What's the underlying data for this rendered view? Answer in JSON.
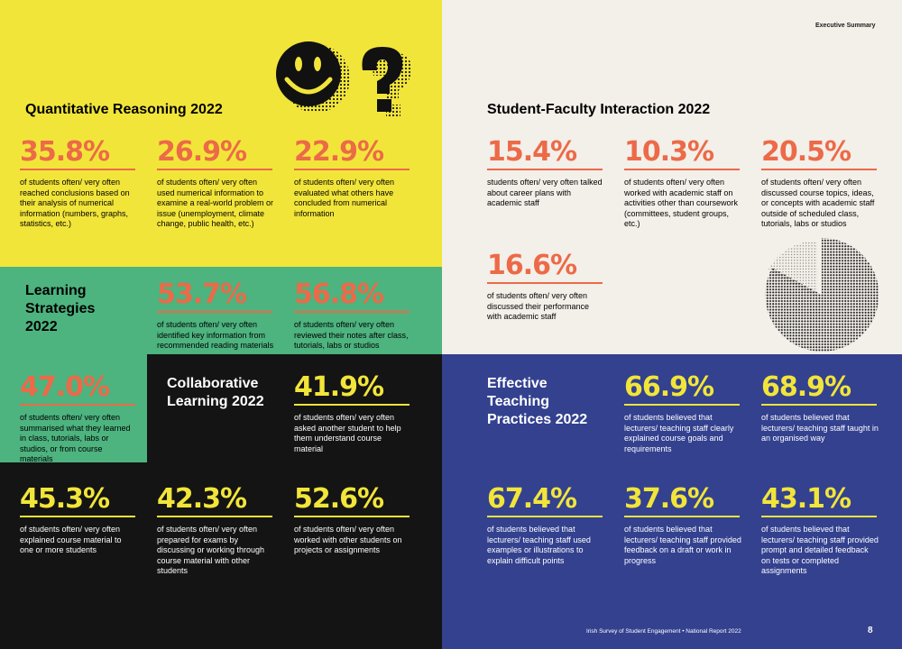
{
  "header": {
    "section_label": "Executive Summary"
  },
  "quant": {
    "title": "Quantitative Reasoning 2022",
    "stats": [
      {
        "value": "35.8%",
        "desc": "of students often/ very often reached conclusions based on their analysis of numerical information (numbers, graphs, statistics, etc.)"
      },
      {
        "value": "26.9%",
        "desc": "of students often/ very often used numerical information to examine a real-world problem or issue (unemployment, climate change, public health, etc.)"
      },
      {
        "value": "22.9%",
        "desc": "of students often/ very often evaluated what others have concluded from numerical information"
      }
    ]
  },
  "learning": {
    "title_1": "Learning",
    "title_2": "Strategies",
    "title_3": "2022",
    "stats": [
      {
        "value": "53.7%",
        "desc": "of students often/ very often identified key information from recommended reading materials"
      },
      {
        "value": "56.8%",
        "desc": "of students often/ very often reviewed their notes after class, tutorials, labs or studios"
      },
      {
        "value": "47.0%",
        "desc": "of students often/ very often summarised what they learned in class, tutorials, labs or studios, or from course materials"
      }
    ]
  },
  "collab": {
    "title_1": "Collaborative",
    "title_2": "Learning 2022",
    "stats": [
      {
        "value": "41.9%",
        "desc": "of students often/ very often asked another student to help them understand course material"
      },
      {
        "value": "45.3%",
        "desc": "of students often/ very often explained course material to one or more students"
      },
      {
        "value": "42.3%",
        "desc": "of students often/ very often prepared for exams by discussing or working through course material with other students"
      },
      {
        "value": "52.6%",
        "desc": "of students often/ very often worked with other students on projects or assignments"
      }
    ]
  },
  "sfi": {
    "title": "Student-Faculty Interaction 2022",
    "stats": [
      {
        "value": "15.4%",
        "desc": "students often/ very often talked about career plans with academic staff"
      },
      {
        "value": "10.3%",
        "desc": "of students often/ very often worked with academic staff on activities other than coursework (committees, student groups, etc.)"
      },
      {
        "value": "20.5%",
        "desc": "of students often/ very often discussed course topics, ideas, or concepts with academic staff outside of scheduled class, tutorials, labs or studios"
      },
      {
        "value": "16.6%",
        "desc": "of students often/ very often discussed their performance with academic staff"
      }
    ]
  },
  "etp": {
    "title_1": "Effective",
    "title_2": "Teaching",
    "title_3": "Practices 2022",
    "stats": [
      {
        "value": "66.9%",
        "desc": "of students believed that lecturers/ teaching staff clearly explained course goals and requirements"
      },
      {
        "value": "68.9%",
        "desc": "of students believed that lecturers/ teaching staff taught in an organised way"
      },
      {
        "value": "67.4%",
        "desc": "of students believed that lecturers/ teaching staff used examples or illustrations to explain difficult points"
      },
      {
        "value": "37.6%",
        "desc": "of students believed that lecturers/ teaching staff provided feedback on a draft or work in progress"
      },
      {
        "value": "43.1%",
        "desc": "of students believed that lecturers/ teaching staff provided prompt and detailed feedback on tests or completed assignments"
      }
    ]
  },
  "footer": {
    "text": "Irish Survey of Student Engagement • National Report 2022",
    "page": "8"
  },
  "colors": {
    "orange": "#ec6a48",
    "yellow": "#f2e53a",
    "green": "#4db37f",
    "black": "#141414",
    "blue": "#33418f",
    "cream": "#f3efe9"
  },
  "icons": [
    "smiley-icon",
    "question-mark-icon",
    "pie-halftone-graphic"
  ]
}
